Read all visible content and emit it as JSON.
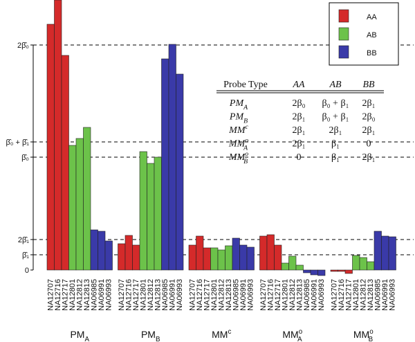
{
  "chart_data": {
    "type": "grouped-bar",
    "ylim": [
      -30,
      390
    ],
    "yticks": [
      {
        "value": 325,
        "label": "2β̂₀"
      },
      {
        "value": 185,
        "label": "β̂₀ + β̂₁"
      },
      {
        "value": 163,
        "label": "β̂₀"
      },
      {
        "value": 44,
        "label": "2β̂₁"
      },
      {
        "value": 22,
        "label": "β̂₁"
      },
      0
    ],
    "ref_lines": true,
    "samples": [
      "NA12707",
      "NA12716",
      "NA12717",
      "NA12801",
      "NA12812",
      "NA12813",
      "NA06985",
      "NA06991",
      "NA06993"
    ],
    "series": [
      {
        "name": "AA",
        "color": "#d42a2a"
      },
      {
        "name": "AB",
        "color": "#6cc24a"
      },
      {
        "name": "BB",
        "color": "#3a3aa8"
      }
    ],
    "legend": "top-right",
    "groups": [
      {
        "label": {
          "text": "PM",
          "sub": "A"
        },
        "values": [
          355,
          390,
          310,
          180,
          190,
          206,
          58,
          56,
          42
        ]
      },
      {
        "label": {
          "text": "PM",
          "sub": "B"
        },
        "values": [
          38,
          50,
          36,
          171,
          154,
          163,
          305,
          326,
          283
        ]
      },
      {
        "label": {
          "text": "MM",
          "sup": "c"
        },
        "values": [
          36,
          49,
          32,
          32,
          29,
          35,
          46,
          36,
          33
        ]
      },
      {
        "label": {
          "text": "MM",
          "sup": "o",
          "sub": "A"
        },
        "values": [
          49,
          51,
          36,
          10,
          20,
          7,
          -4,
          -7,
          -8
        ]
      },
      {
        "label": {
          "text": "MM",
          "sup": "o",
          "sub": "B"
        },
        "values": [
          -2,
          -2,
          -5,
          21,
          18,
          12,
          56,
          49,
          48
        ]
      }
    ],
    "table": {
      "header": [
        "Probe Type",
        "AA",
        "AB",
        "BB"
      ],
      "rows": [
        [
          {
            "text": "PM",
            "sub": "A"
          },
          "2β₀",
          "β₀ + β₁",
          "2β₁"
        ],
        [
          {
            "text": "PM",
            "sub": "B"
          },
          "2β₁",
          "β₀ + β₁",
          "2β₀"
        ],
        [
          {
            "text": "MM",
            "sup": "c"
          },
          "2β₁",
          "2β₁",
          "2β₁"
        ],
        [
          {
            "text": "MM",
            "sup": "o",
            "sub": "A"
          },
          "2β₁",
          "β₁",
          "0"
        ],
        [
          {
            "text": "MM",
            "sup": "o",
            "sub": "B"
          },
          "0",
          "β₁",
          "2β₁"
        ]
      ]
    }
  }
}
